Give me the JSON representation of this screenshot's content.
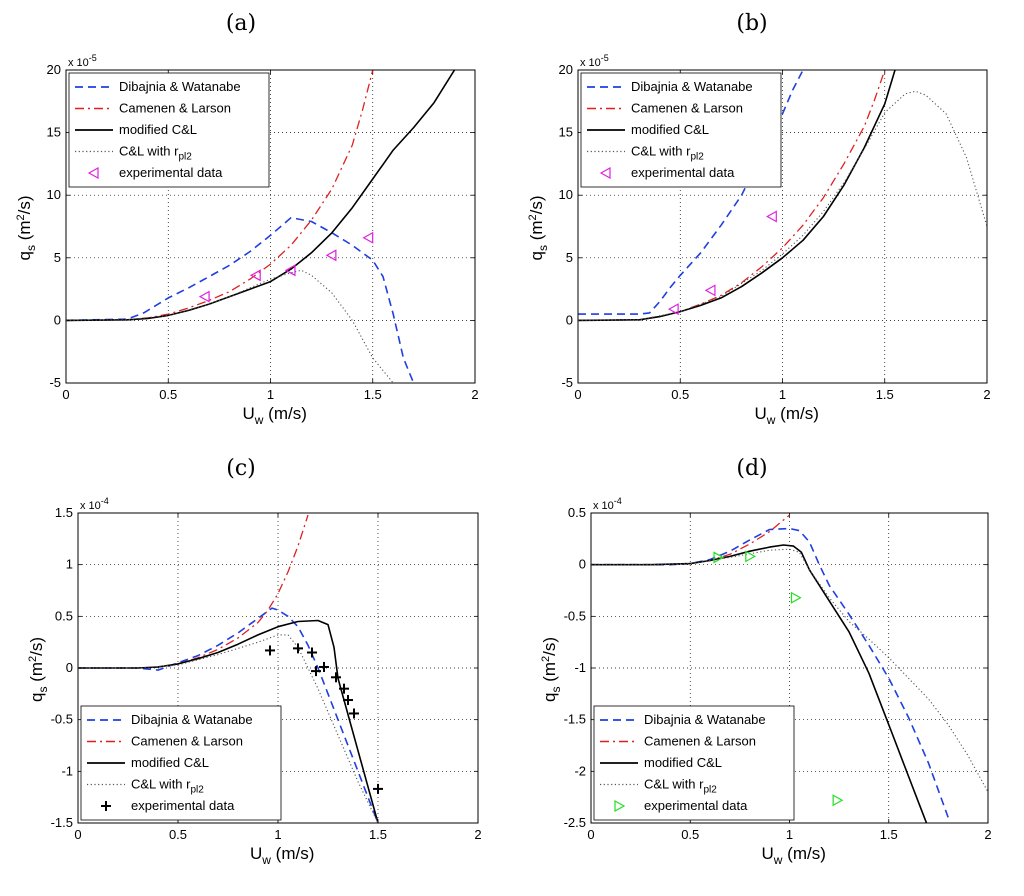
{
  "chart_data": [
    {
      "panel_label": "(a)",
      "type": "line",
      "xlabel": {
        "main": "U",
        "sub": "w",
        "rest": " (m/s)"
      },
      "ylabel": {
        "main": "q",
        "sub": "s",
        "rest": " (m",
        "sup": "2",
        "tail": "/s)"
      },
      "y_scale_text": {
        "prefix": "x 10",
        "exp": "-5"
      },
      "xlim": [
        0,
        2
      ],
      "ylim": [
        -5,
        20
      ],
      "xticks": [
        0,
        0.5,
        1,
        1.5,
        2
      ],
      "xtick_labels": [
        "0",
        "0.5",
        "1",
        "1.5",
        "2"
      ],
      "yticks": [
        -5,
        0,
        5,
        10,
        15,
        20
      ],
      "ytick_labels": [
        "-5",
        "0",
        "5",
        "10",
        "15",
        "20"
      ],
      "grid": true,
      "legend_position": "top-left",
      "series": [
        {
          "name": "Dibajnia & Watanabe",
          "style": "dashed",
          "color": "#1f3fe0",
          "x": [
            0,
            0.3,
            0.38,
            0.5,
            0.6,
            0.7,
            0.8,
            0.9,
            1.0,
            1.1,
            1.2,
            1.3,
            1.4,
            1.5,
            1.55,
            1.6,
            1.65,
            1.7
          ],
          "y": [
            0,
            0.1,
            0.6,
            1.8,
            2.6,
            3.5,
            4.4,
            5.5,
            6.8,
            8.2,
            7.9,
            7.0,
            6.0,
            4.8,
            3.5,
            0.5,
            -3.0,
            -5.0
          ]
        },
        {
          "name": "Camenen & Larson",
          "style": "dashdot",
          "color": "#e02020",
          "x": [
            0,
            0.3,
            0.4,
            0.5,
            0.6,
            0.7,
            0.8,
            0.9,
            1.0,
            1.1,
            1.2,
            1.3,
            1.4,
            1.45,
            1.5
          ],
          "y": [
            0,
            0.05,
            0.2,
            0.5,
            1.0,
            1.6,
            2.3,
            3.3,
            4.5,
            6.0,
            8.0,
            10.5,
            14.0,
            16.8,
            20.0
          ]
        },
        {
          "name": "modified C&L",
          "style": "solid",
          "color": "#000000",
          "x": [
            0,
            0.3,
            0.4,
            0.5,
            0.6,
            0.7,
            0.8,
            0.9,
            1.0,
            1.1,
            1.2,
            1.3,
            1.4,
            1.5,
            1.6,
            1.7,
            1.8,
            1.9
          ],
          "y": [
            0,
            0.05,
            0.15,
            0.4,
            0.8,
            1.3,
            1.9,
            2.5,
            3.1,
            4.1,
            5.4,
            7.0,
            9.0,
            11.3,
            13.6,
            15.4,
            17.4,
            20.0
          ]
        },
        {
          "name": "C&L with r",
          "name_sub": "pl2",
          "style": "dotted",
          "color": "#555555",
          "x": [
            0,
            0.3,
            0.5,
            0.7,
            0.8,
            0.9,
            1.0,
            1.1,
            1.15,
            1.2,
            1.3,
            1.4,
            1.5,
            1.55,
            1.6
          ],
          "y": [
            0,
            0.05,
            0.4,
            1.3,
            1.9,
            2.6,
            3.3,
            3.8,
            4.0,
            3.6,
            2.2,
            0.0,
            -3.0,
            -4.0,
            -5.0
          ]
        }
      ],
      "experimental": {
        "name": "experimental data",
        "marker": "triangle-left",
        "color": "#e020e0",
        "x": [
          0.68,
          0.93,
          1.1,
          1.3,
          1.48
        ],
        "y": [
          1.9,
          3.6,
          4.0,
          5.2,
          6.6
        ]
      }
    },
    {
      "panel_label": "(b)",
      "type": "line",
      "xlabel": {
        "main": "U",
        "sub": "w",
        "rest": " (m/s)"
      },
      "ylabel": {
        "main": "q",
        "sub": "s",
        "rest": " (m",
        "sup": "2",
        "tail": "/s)"
      },
      "y_scale_text": {
        "prefix": "x 10",
        "exp": "-5"
      },
      "xlim": [
        0,
        2
      ],
      "ylim": [
        -5,
        20
      ],
      "xticks": [
        0,
        0.5,
        1,
        1.5,
        2
      ],
      "xtick_labels": [
        "0",
        "0.5",
        "1",
        "1.5",
        "2"
      ],
      "yticks": [
        -5,
        0,
        5,
        10,
        15,
        20
      ],
      "ytick_labels": [
        "-5",
        "0",
        "5",
        "10",
        "15",
        "20"
      ],
      "grid": true,
      "legend_position": "top-left",
      "series": [
        {
          "name": "Dibajnia & Watanabe",
          "style": "dashed",
          "color": "#1f3fe0",
          "x": [
            0,
            0.3,
            0.35,
            0.4,
            0.45,
            0.5,
            0.6,
            0.7,
            0.8,
            0.9,
            1.0,
            1.05,
            1.1
          ],
          "y": [
            0.5,
            0.5,
            0.6,
            1.5,
            2.6,
            3.6,
            5.4,
            7.6,
            10.0,
            13.3,
            16.5,
            18.4,
            20.0
          ]
        },
        {
          "name": "Camenen & Larson",
          "style": "dashdot",
          "color": "#e02020",
          "x": [
            0,
            0.3,
            0.4,
            0.5,
            0.6,
            0.7,
            0.8,
            0.9,
            1.0,
            1.1,
            1.2,
            1.3,
            1.4,
            1.45,
            1.5
          ],
          "y": [
            0,
            0.05,
            0.3,
            0.7,
            1.3,
            2.0,
            3.0,
            4.3,
            5.8,
            7.6,
            9.8,
            12.5,
            15.5,
            17.6,
            20.0
          ]
        },
        {
          "name": "modified C&L",
          "style": "solid",
          "color": "#000000",
          "x": [
            0,
            0.3,
            0.4,
            0.5,
            0.6,
            0.7,
            0.8,
            0.9,
            1.0,
            1.1,
            1.2,
            1.3,
            1.4,
            1.5,
            1.55
          ],
          "y": [
            0,
            0.05,
            0.3,
            0.7,
            1.2,
            1.8,
            2.7,
            3.8,
            5.0,
            6.4,
            8.3,
            10.8,
            13.8,
            17.3,
            20.0
          ]
        },
        {
          "name": "C&L with r",
          "name_sub": "pl2",
          "style": "dotted",
          "color": "#555555",
          "x": [
            0,
            0.3,
            0.5,
            0.7,
            0.9,
            1.0,
            1.1,
            1.2,
            1.3,
            1.4,
            1.5,
            1.6,
            1.65,
            1.7,
            1.8,
            1.9,
            2.0
          ],
          "y": [
            0,
            0.05,
            0.7,
            1.9,
            4.0,
            5.3,
            6.8,
            8.7,
            11.0,
            13.7,
            16.6,
            18.1,
            18.3,
            18.0,
            16.5,
            13.0,
            7.5
          ]
        }
      ],
      "experimental": {
        "name": "experimental data",
        "marker": "triangle-left",
        "color": "#e020e0",
        "x": [
          0.47,
          0.65,
          0.95
        ],
        "y": [
          0.9,
          2.4,
          8.3
        ]
      }
    },
    {
      "panel_label": "(c)",
      "type": "line",
      "xlabel": {
        "main": "U",
        "sub": "w",
        "rest": " (m/s)"
      },
      "ylabel": {
        "main": "q",
        "sub": "s",
        "rest": " (m",
        "sup": "2",
        "tail": "/s)"
      },
      "y_scale_text": {
        "prefix": "x 10",
        "exp": "-4"
      },
      "xlim": [
        0,
        2
      ],
      "ylim": [
        -1.5,
        1.5
      ],
      "xticks": [
        0,
        0.5,
        1,
        1.5,
        2
      ],
      "xtick_labels": [
        "0",
        "0.5",
        "1",
        "1.5",
        "2"
      ],
      "yticks": [
        -1.5,
        -1,
        -0.5,
        0,
        0.5,
        1,
        1.5
      ],
      "ytick_labels": [
        "-1.5",
        "-1",
        "-0.5",
        "0",
        "0.5",
        "1",
        "1.5"
      ],
      "grid": true,
      "legend_position": "bottom-left",
      "series": [
        {
          "name": "Dibajnia & Watanabe",
          "style": "dashed",
          "color": "#1f3fe0",
          "x": [
            0,
            0.3,
            0.4,
            0.5,
            0.6,
            0.7,
            0.8,
            0.9,
            0.97,
            1.0,
            1.05,
            1.1,
            1.15,
            1.2,
            1.25,
            1.3,
            1.35,
            1.4,
            1.45,
            1.5
          ],
          "y": [
            0,
            0,
            -0.02,
            0.05,
            0.12,
            0.22,
            0.34,
            0.48,
            0.58,
            0.56,
            0.5,
            0.4,
            0.22,
            0.0,
            -0.25,
            -0.5,
            -0.75,
            -1.0,
            -1.25,
            -1.5
          ]
        },
        {
          "name": "Camenen & Larson",
          "style": "dashdot",
          "color": "#e02020",
          "x": [
            0,
            0.3,
            0.4,
            0.5,
            0.6,
            0.7,
            0.8,
            0.9,
            0.95,
            1.0,
            1.05,
            1.1,
            1.15
          ],
          "y": [
            0,
            0,
            0.01,
            0.04,
            0.1,
            0.18,
            0.29,
            0.44,
            0.56,
            0.72,
            0.93,
            1.18,
            1.48
          ]
        },
        {
          "name": "modified C&L",
          "style": "solid",
          "color": "#000000",
          "x": [
            0,
            0.3,
            0.4,
            0.5,
            0.6,
            0.7,
            0.8,
            0.9,
            1.0,
            1.1,
            1.2,
            1.25,
            1.28,
            1.3,
            1.35,
            1.4,
            1.45,
            1.5
          ],
          "y": [
            0,
            0,
            0.01,
            0.04,
            0.09,
            0.15,
            0.23,
            0.32,
            0.4,
            0.45,
            0.46,
            0.42,
            0.2,
            -0.1,
            -0.45,
            -0.8,
            -1.15,
            -1.5
          ]
        },
        {
          "name": "C&L with r",
          "name_sub": "pl2",
          "style": "dotted",
          "color": "#555555",
          "x": [
            0,
            0.3,
            0.5,
            0.7,
            0.9,
            1.0,
            1.05,
            1.1,
            1.2,
            1.3,
            1.4,
            1.5
          ],
          "y": [
            0,
            0,
            0.03,
            0.13,
            0.25,
            0.32,
            0.32,
            0.2,
            -0.2,
            -0.65,
            -1.1,
            -1.5
          ]
        }
      ],
      "experimental": {
        "name": "experimental data",
        "marker": "plus",
        "color": "#000000",
        "x": [
          0.96,
          1.1,
          1.17,
          1.19,
          1.23,
          1.29,
          1.33,
          1.35,
          1.38,
          1.5
        ],
        "y": [
          0.17,
          0.19,
          0.15,
          -0.03,
          0.01,
          -0.09,
          -0.2,
          -0.31,
          -0.44,
          -1.17
        ]
      }
    },
    {
      "panel_label": "(d)",
      "type": "line",
      "xlabel": {
        "main": "U",
        "sub": "w",
        "rest": " (m/s)"
      },
      "ylabel": {
        "main": "q",
        "sub": "s",
        "rest": " (m",
        "sup": "2",
        "tail": "/s)"
      },
      "y_scale_text": {
        "prefix": "x 10",
        "exp": "-4"
      },
      "xlim": [
        0,
        2
      ],
      "ylim": [
        -2.5,
        0.5
      ],
      "xticks": [
        0,
        0.5,
        1,
        1.5,
        2
      ],
      "xtick_labels": [
        "0",
        "0.5",
        "1",
        "1.5",
        "2"
      ],
      "yticks": [
        -2.5,
        -2,
        -1.5,
        -1,
        -0.5,
        0,
        0.5
      ],
      "ytick_labels": [
        "-2.5",
        "-2",
        "-1.5",
        "-1",
        "-0.5",
        "0",
        "0.5"
      ],
      "grid": true,
      "legend_position": "bottom-left",
      "series": [
        {
          "name": "Dibajnia & Watanabe",
          "style": "dashed",
          "color": "#1f3fe0",
          "x": [
            0,
            0.3,
            0.4,
            0.5,
            0.6,
            0.7,
            0.8,
            0.9,
            1.0,
            1.05,
            1.1,
            1.15,
            1.2,
            1.3,
            1.4,
            1.5,
            1.6,
            1.7,
            1.8
          ],
          "y": [
            0,
            0,
            0.0,
            0.01,
            0.05,
            0.13,
            0.24,
            0.34,
            0.35,
            0.33,
            0.22,
            0.0,
            -0.2,
            -0.48,
            -0.78,
            -1.1,
            -1.48,
            -1.92,
            -2.45
          ]
        },
        {
          "name": "Camenen & Larson",
          "style": "dashdot",
          "color": "#e02020",
          "x": [
            0,
            0.3,
            0.5,
            0.6,
            0.7,
            0.8,
            0.9,
            0.95,
            1.0
          ],
          "y": [
            0,
            0,
            0.01,
            0.04,
            0.1,
            0.2,
            0.32,
            0.4,
            0.48
          ]
        },
        {
          "name": "modified C&L",
          "style": "solid",
          "color": "#000000",
          "x": [
            0,
            0.3,
            0.5,
            0.6,
            0.7,
            0.8,
            0.9,
            0.97,
            1.02,
            1.06,
            1.1,
            1.15,
            1.2,
            1.3,
            1.4,
            1.5,
            1.6,
            1.65,
            1.7
          ],
          "y": [
            0,
            0,
            0.01,
            0.04,
            0.08,
            0.13,
            0.17,
            0.19,
            0.18,
            0.12,
            -0.05,
            -0.2,
            -0.35,
            -0.65,
            -1.05,
            -1.55,
            -2.05,
            -2.3,
            -2.55
          ]
        },
        {
          "name": "C&L with r",
          "name_sub": "pl2",
          "style": "dotted",
          "color": "#555555",
          "x": [
            0,
            0.3,
            0.5,
            0.7,
            0.9,
            1.0,
            1.05,
            1.1,
            1.2,
            1.3,
            1.4,
            1.5,
            1.6,
            1.7,
            1.8,
            1.9,
            2.0
          ],
          "y": [
            0,
            0,
            0.01,
            0.07,
            0.14,
            0.15,
            0.12,
            -0.05,
            -0.32,
            -0.55,
            -0.72,
            -0.9,
            -1.1,
            -1.3,
            -1.55,
            -1.85,
            -2.2
          ]
        }
      ],
      "experimental": {
        "name": "experimental data",
        "marker": "triangle-right",
        "color": "#20e020",
        "x": [
          0.64,
          0.8,
          1.03,
          1.24
        ],
        "y": [
          0.07,
          0.08,
          -0.32,
          -2.28
        ]
      }
    }
  ]
}
